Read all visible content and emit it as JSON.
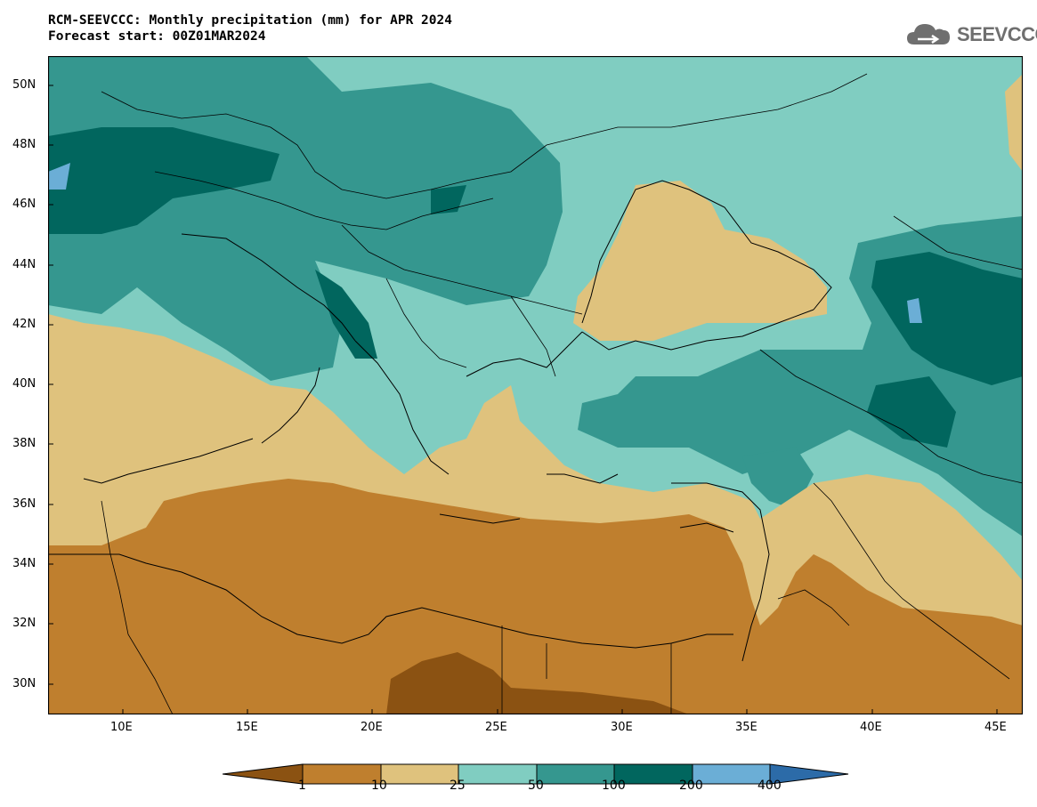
{
  "header": {
    "title_line1": "RCM-SEEVCCC: Monthly precipitation (mm) for APR 2024",
    "title_line2": "Forecast start: 00Z01MAR2024"
  },
  "logo": {
    "text": "SEEVCCC",
    "icon": "cloud-icon"
  },
  "map": {
    "lat_labels": [
      "50N",
      "48N",
      "46N",
      "44N",
      "42N",
      "40N",
      "38N",
      "36N",
      "34N",
      "32N",
      "30N"
    ],
    "lon_labels": [
      "10E",
      "15E",
      "20E",
      "25E",
      "30E",
      "35E",
      "40E",
      "45E"
    ],
    "lat_range": [
      29,
      51
    ],
    "lon_range": [
      7,
      46
    ]
  },
  "legend": {
    "levels": [
      "1",
      "10",
      "25",
      "50",
      "100",
      "200",
      "400"
    ],
    "colors": [
      "#8b5212",
      "#bf7f2e",
      "#dfc27d",
      "#80cdc1",
      "#35978f",
      "#01665e",
      "#6baed6",
      "#2c6ba8"
    ]
  }
}
